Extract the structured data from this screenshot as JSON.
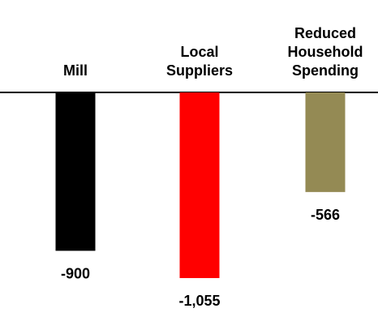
{
  "chart_data": {
    "type": "bar",
    "categories": [
      [
        "Mill"
      ],
      [
        "Local",
        "Suppliers"
      ],
      [
        "Reduced",
        "Household",
        "Spending"
      ]
    ],
    "values": [
      -900,
      -1055,
      -566
    ],
    "value_labels": [
      "-900",
      "-1,055",
      "-566"
    ],
    "colors": [
      "#000000",
      "#ff0000",
      "#948a54"
    ],
    "ylim": [
      -1100,
      0
    ],
    "grid": false,
    "legend": "none"
  }
}
